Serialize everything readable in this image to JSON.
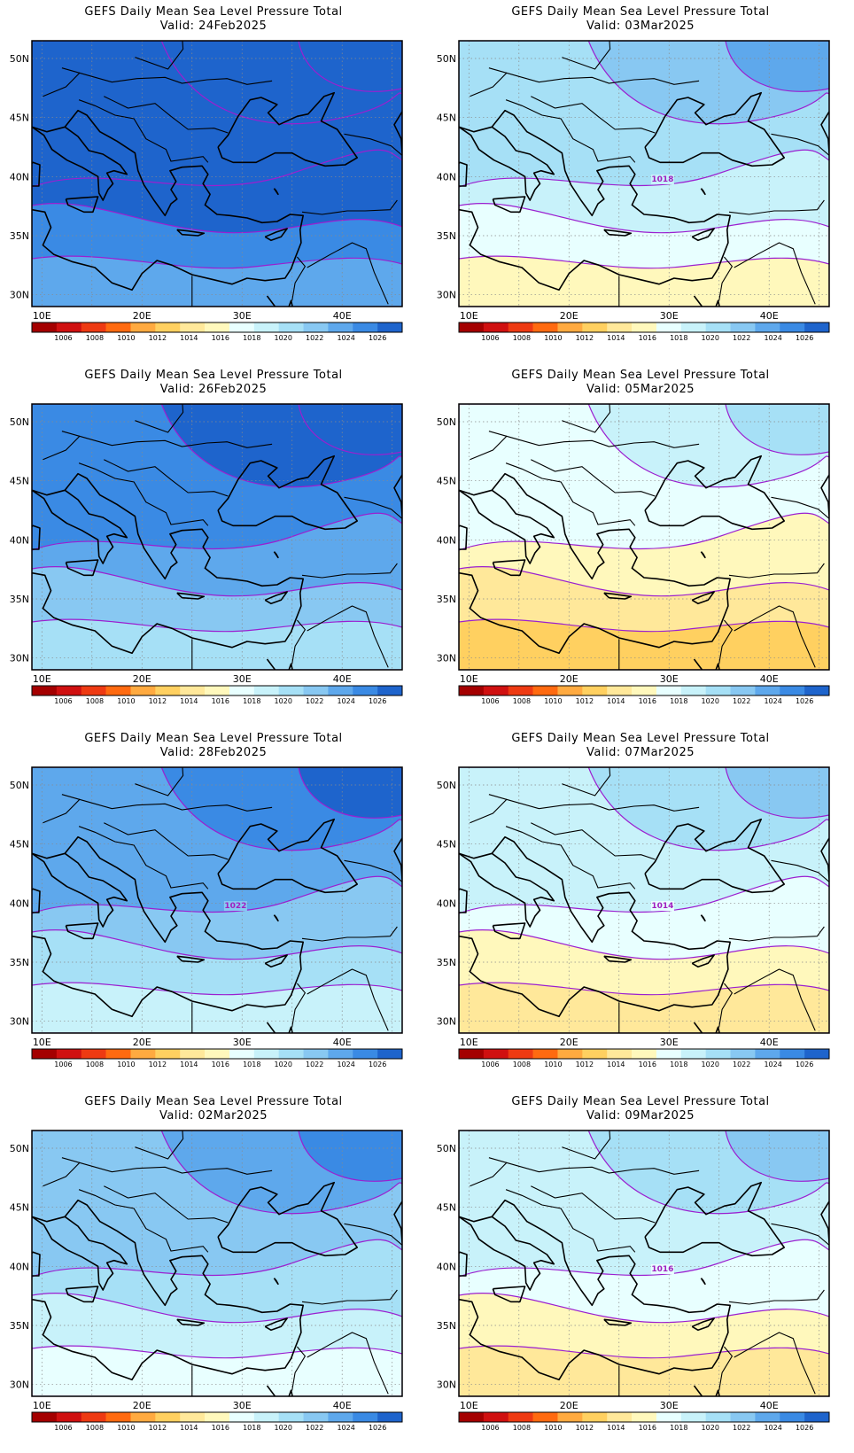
{
  "colors": {
    "contour": "#9b1fd0",
    "coast": "#000000",
    "grid": "#8a8a8a",
    "palette": [
      "#a40000",
      "#d01010",
      "#ee3a12",
      "#ff6a10",
      "#ffaa40",
      "#ffd060",
      "#ffe89a",
      "#fff8bc",
      "#e8ffff",
      "#c8f2fa",
      "#a6e0f6",
      "#88c8f2",
      "#5ea8ec",
      "#3a8ae4",
      "#1e64cc"
    ]
  },
  "legend": {
    "labels": [
      "1006",
      "1008",
      "1010",
      "1012",
      "1014",
      "1016",
      "1018",
      "1020",
      "1022",
      "1024",
      "1026"
    ]
  },
  "axes": {
    "lon_labels": [
      "10E",
      "20E",
      "30E",
      "40E"
    ],
    "lat_labels": [
      "50N",
      "45N",
      "40N",
      "35N",
      "30N"
    ]
  },
  "panels": [
    {
      "title": "GEFS Daily Mean Sea Level Pressure Total",
      "valid": "Valid: 24Feb2025",
      "base_level": 14,
      "contour_label": ""
    },
    {
      "title": "GEFS Daily Mean Sea Level Pressure Total",
      "valid": "Valid: 03Mar2025",
      "base_level": 9,
      "contour_label": "1018"
    },
    {
      "title": "GEFS Daily Mean Sea Level Pressure Total",
      "valid": "Valid: 26Feb2025",
      "base_level": 12,
      "contour_label": ""
    },
    {
      "title": "GEFS Daily Mean Sea Level Pressure Total",
      "valid": "Valid: 05Mar2025",
      "base_level": 7,
      "contour_label": ""
    },
    {
      "title": "GEFS Daily Mean Sea Level Pressure Total",
      "valid": "Valid: 28Feb2025",
      "base_level": 11,
      "contour_label": "1022"
    },
    {
      "title": "GEFS Daily Mean Sea Level Pressure Total",
      "valid": "Valid: 07Mar2025",
      "base_level": 8,
      "contour_label": "1014"
    },
    {
      "title": "GEFS Daily Mean Sea Level Pressure Total",
      "valid": "Valid: 02Mar2025",
      "base_level": 10,
      "contour_label": ""
    },
    {
      "title": "GEFS Daily Mean Sea Level Pressure Total",
      "valid": "Valid: 09Mar2025",
      "base_level": 8,
      "contour_label": "1016"
    }
  ]
}
